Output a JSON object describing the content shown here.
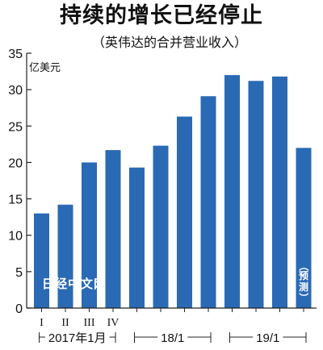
{
  "chart_data": {
    "type": "bar",
    "title": "持续的增长已经停止",
    "subtitle": "（英伟达的合并营业收入）",
    "unit_label": "亿美元",
    "ylim": [
      0,
      35
    ],
    "yticks": [
      0,
      5,
      10,
      15,
      20,
      25,
      30,
      35
    ],
    "grid": false,
    "bar_color": "#2a6ab5",
    "values": [
      13.0,
      14.2,
      20.0,
      21.7,
      19.3,
      22.3,
      26.3,
      29.1,
      32.0,
      31.2,
      31.8,
      22.0
    ],
    "category_labels": [
      "I",
      "II",
      "III",
      "IV",
      "",
      "",
      "",
      "",
      "",
      "",
      "",
      ""
    ],
    "groups": [
      {
        "label": "2017年1月",
        "start": 0,
        "end": 3
      },
      {
        "label": "18/1",
        "start": 4,
        "end": 7
      },
      {
        "label": "19/1",
        "start": 8,
        "end": 11
      }
    ],
    "forecast_label": [
      "（",
      "预",
      "测",
      "）"
    ],
    "watermark": "日经中文网"
  }
}
